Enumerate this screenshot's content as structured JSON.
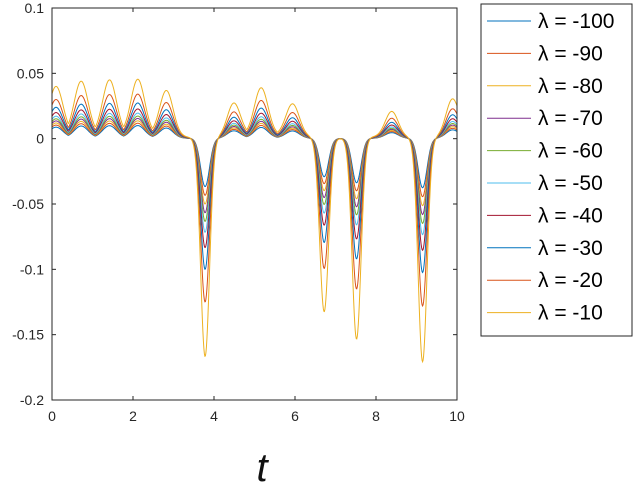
{
  "chart_data": {
    "type": "line",
    "title": "",
    "xlabel": "t",
    "ylabel": "",
    "xlim": [
      0,
      10
    ],
    "ylim": [
      -0.2,
      0.1
    ],
    "xticks": [
      "0",
      "2",
      "4",
      "6",
      "8",
      "10"
    ],
    "yticks": [
      "0.1",
      "0.05",
      "0",
      "-0.05",
      "-0.1",
      "-0.15",
      "-0.2"
    ],
    "legend_position": "outside-right-top",
    "grid": false,
    "series": [
      {
        "name": "λ = -100",
        "label": "λ = -100",
        "color": "#0072BD",
        "amplitude": 0.22
      },
      {
        "name": "λ = -90",
        "label": "λ = -90",
        "color": "#D95319",
        "amplitude": 0.26
      },
      {
        "name": "λ = -80",
        "label": "λ = -80",
        "color": "#EDB120",
        "amplitude": 0.3
      },
      {
        "name": "λ = -70",
        "label": "λ = -70",
        "color": "#7E2F8E",
        "amplitude": 0.34
      },
      {
        "name": "λ = -60",
        "label": "λ = -60",
        "color": "#77AC30",
        "amplitude": 0.38
      },
      {
        "name": "λ = -50",
        "label": "λ = -50",
        "color": "#4DBEEE",
        "amplitude": 0.43
      },
      {
        "name": "λ = -40",
        "label": "λ = -40",
        "color": "#A2142F",
        "amplitude": 0.5
      },
      {
        "name": "λ = -30",
        "label": "λ = -30",
        "color": "#0072BD",
        "amplitude": 0.6
      },
      {
        "name": "λ = -20",
        "label": "λ = -20",
        "color": "#D95319",
        "amplitude": 0.75
      },
      {
        "name": "λ = -10",
        "label": "λ = -10",
        "color": "#EDB120",
        "amplitude": 1.0
      }
    ],
    "features_lambda_-10": {
      "peaks": [
        {
          "x": 0.1,
          "y": 0.04
        },
        {
          "x": 0.72,
          "y": 0.044
        },
        {
          "x": 1.42,
          "y": 0.045
        },
        {
          "x": 2.12,
          "y": 0.046
        },
        {
          "x": 2.85,
          "y": 0.048
        },
        {
          "x": 4.45,
          "y": 0.046
        },
        {
          "x": 5.17,
          "y": 0.047
        },
        {
          "x": 5.97,
          "y": 0.051
        },
        {
          "x": 8.4,
          "y": 0.049
        },
        {
          "x": 9.85,
          "y": 0.046
        }
      ],
      "troughs": [
        {
          "x": 3.78,
          "y": -0.167
        },
        {
          "x": 6.72,
          "y": -0.133
        },
        {
          "x": 7.52,
          "y": -0.154
        },
        {
          "x": 9.15,
          "y": -0.171
        }
      ]
    }
  }
}
